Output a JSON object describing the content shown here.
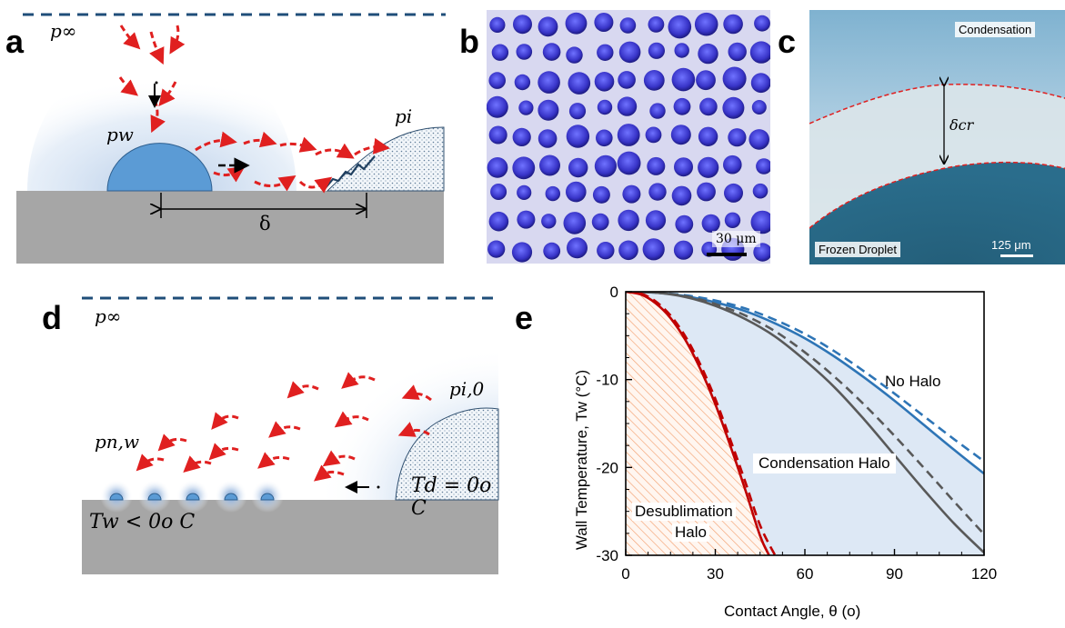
{
  "panels": {
    "a": {
      "letter": "a",
      "p_inf": "p∞",
      "p_w": "pw",
      "p_i": "pi",
      "delta": "δ"
    },
    "b": {
      "letter": "b",
      "scale": "30 μm"
    },
    "c": {
      "letter": "c",
      "top_label": "Condensation",
      "bottom_label": "Frozen Droplet",
      "delta_cr": "δcr",
      "scale": "125 μm"
    },
    "d": {
      "letter": "d",
      "p_inf": "p∞",
      "p_nw": "pn,w",
      "p_i0": "pi,0",
      "T_d": "Td = 0o C",
      "T_w": "Tw < 0o C"
    },
    "e": {
      "letter": "e"
    }
  },
  "chart_data": {
    "type": "line",
    "xlabel": "Contact Angle,  θ (o)",
    "ylabel": "Wall Temperature,  Tw (°C)",
    "xlim": [
      0,
      120
    ],
    "ylim": [
      -30,
      0
    ],
    "xticks": [
      "0",
      "30",
      "60",
      "90",
      "120"
    ],
    "yticks": [
      "0",
      "-10",
      "-20",
      "-30"
    ],
    "region_labels": [
      "No Halo",
      "Condensation Halo",
      "Desublimation",
      "Halo"
    ],
    "series": [
      {
        "color": "#2e75b6",
        "style": "solid",
        "x": [
          0,
          10,
          20,
          30,
          40,
          50,
          60,
          70,
          80,
          90,
          100,
          110,
          120
        ],
        "y": [
          0,
          -0.1,
          -0.5,
          -1.2,
          -2.2,
          -3.6,
          -5.3,
          -7.4,
          -9.8,
          -12.4,
          -15.2,
          -18.0,
          -20.7
        ]
      },
      {
        "color": "#2e75b6",
        "style": "dashed",
        "x": [
          0,
          10,
          20,
          30,
          40,
          50,
          60,
          70,
          80,
          90,
          100,
          110,
          120
        ],
        "y": [
          0,
          -0.1,
          -0.4,
          -1.0,
          -1.9,
          -3.2,
          -4.8,
          -6.8,
          -9.1,
          -11.6,
          -14.2,
          -16.8,
          -19.3
        ]
      },
      {
        "color": "#595959",
        "style": "solid",
        "x": [
          0,
          10,
          20,
          30,
          40,
          50,
          60,
          70,
          80,
          90,
          100,
          110,
          120
        ],
        "y": [
          0,
          -0.1,
          -0.6,
          -1.6,
          -3.1,
          -5.1,
          -7.8,
          -10.9,
          -14.6,
          -18.6,
          -22.6,
          -26.4,
          -29.7
        ]
      },
      {
        "color": "#595959",
        "style": "dashed",
        "x": [
          0,
          10,
          20,
          30,
          40,
          50,
          60,
          70,
          80,
          90,
          100,
          110,
          120
        ],
        "y": [
          0,
          -0.1,
          -0.5,
          -1.4,
          -2.7,
          -4.5,
          -6.9,
          -9.7,
          -12.9,
          -16.4,
          -20.1,
          -23.9,
          -27.6
        ]
      },
      {
        "color": "#c00000",
        "style": "solid",
        "x": [
          0,
          5,
          10,
          15,
          20,
          25,
          30,
          35,
          40,
          45,
          48
        ],
        "y": [
          0,
          -0.3,
          -1.3,
          -3.0,
          -5.5,
          -8.8,
          -12.8,
          -17.5,
          -22.5,
          -27.8,
          -30
        ]
      },
      {
        "color": "#c00000",
        "style": "dashed",
        "x": [
          0,
          5,
          10,
          15,
          20,
          25,
          30,
          35,
          40,
          45,
          50
        ],
        "y": [
          0,
          -0.2,
          -1.1,
          -2.7,
          -5.1,
          -8.3,
          -12.2,
          -16.8,
          -21.6,
          -26.6,
          -30
        ]
      }
    ]
  }
}
